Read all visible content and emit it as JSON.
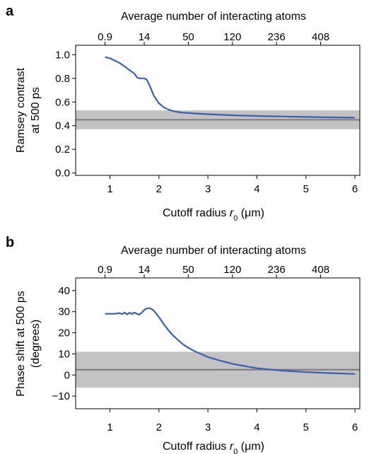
{
  "chart_data": [
    {
      "panel_label": "a",
      "type": "line",
      "top_axis_label": "Average number of interacting atoms",
      "top_ticks": [
        {
          "r": 0.9,
          "label": "0.9"
        },
        {
          "r": 1.7,
          "label": "14"
        },
        {
          "r": 2.6,
          "label": "50"
        },
        {
          "r": 3.5,
          "label": "120"
        },
        {
          "r": 4.4,
          "label": "236"
        },
        {
          "r": 5.3,
          "label": "408"
        }
      ],
      "xlabel_prefix": "Cutoff radius ",
      "xlabel_var": "r",
      "xlabel_sub": "0",
      "xlabel_suffix": " (μm)",
      "ylabel_lines": [
        "Ramsey contrast",
        "at 500 ps"
      ],
      "xlim": [
        0.3,
        6.1
      ],
      "ylim": [
        -0.02,
        1.08
      ],
      "xticks": [
        1,
        2,
        3,
        4,
        5,
        6
      ],
      "xtick_labels": [
        "1",
        "2",
        "3",
        "4",
        "5",
        "6"
      ],
      "yticks": [
        0.0,
        0.2,
        0.4,
        0.6,
        0.8,
        1.0
      ],
      "ytick_labels": [
        "0.0",
        "0.2",
        "0.4",
        "0.6",
        "0.8",
        "1.0"
      ],
      "band": {
        "low": 0.37,
        "high": 0.53,
        "center": 0.45
      },
      "series": [
        {
          "x": [
            0.9,
            1.0,
            1.1,
            1.2,
            1.3,
            1.4,
            1.5,
            1.55,
            1.6,
            1.65,
            1.7,
            1.75,
            1.8,
            1.85,
            1.9,
            2.0,
            2.1,
            2.2,
            2.3,
            2.4,
            2.5,
            2.75,
            3.0,
            3.5,
            4.0,
            4.5,
            5.0,
            5.5,
            6.0
          ],
          "y": [
            0.98,
            0.97,
            0.95,
            0.93,
            0.9,
            0.87,
            0.84,
            0.81,
            0.8,
            0.8,
            0.8,
            0.79,
            0.75,
            0.7,
            0.65,
            0.59,
            0.555,
            0.535,
            0.523,
            0.515,
            0.51,
            0.503,
            0.497,
            0.488,
            0.482,
            0.478,
            0.474,
            0.47,
            0.468
          ]
        }
      ]
    },
    {
      "panel_label": "b",
      "type": "line",
      "top_axis_label": "Average number of interacting atoms",
      "top_ticks": [
        {
          "r": 0.9,
          "label": "0.9"
        },
        {
          "r": 1.7,
          "label": "14"
        },
        {
          "r": 2.6,
          "label": "50"
        },
        {
          "r": 3.5,
          "label": "120"
        },
        {
          "r": 4.4,
          "label": "236"
        },
        {
          "r": 5.3,
          "label": "408"
        }
      ],
      "xlabel_prefix": "Cutoff radius ",
      "xlabel_var": "r",
      "xlabel_sub": "0",
      "xlabel_suffix": " (μm)",
      "ylabel_lines": [
        "Phase shift at 500 ps",
        "(degrees)"
      ],
      "xlim": [
        0.3,
        6.1
      ],
      "ylim": [
        -16,
        46
      ],
      "xticks": [
        1,
        2,
        3,
        4,
        5,
        6
      ],
      "xtick_labels": [
        "1",
        "2",
        "3",
        "4",
        "5",
        "6"
      ],
      "yticks": [
        -10,
        0,
        10,
        20,
        30,
        40
      ],
      "ytick_labels": [
        "−10",
        "0",
        "10",
        "20",
        "30",
        "40"
      ],
      "band": {
        "low": -6,
        "high": 11,
        "center": 2.5
      },
      "series": [
        {
          "x": [
            0.9,
            1.0,
            1.1,
            1.2,
            1.25,
            1.3,
            1.35,
            1.4,
            1.45,
            1.5,
            1.55,
            1.6,
            1.65,
            1.7,
            1.75,
            1.8,
            1.85,
            1.9,
            2.0,
            2.1,
            2.2,
            2.3,
            2.4,
            2.5,
            2.6,
            2.75,
            3.0,
            3.25,
            3.5,
            3.75,
            4.0,
            4.25,
            4.5,
            5.0,
            5.5,
            6.0
          ],
          "y": [
            29,
            29,
            29,
            29.3,
            28.8,
            29.6,
            28.7,
            29.5,
            28.9,
            29.6,
            29.0,
            28.6,
            29.6,
            30.8,
            31.5,
            31.7,
            31.3,
            30.4,
            27.5,
            24.0,
            21.0,
            18.5,
            16.3,
            14.4,
            12.9,
            11.0,
            8.5,
            6.8,
            5.3,
            4.2,
            3.2,
            2.6,
            2.1,
            1.4,
            0.9,
            0.5
          ]
        }
      ]
    }
  ]
}
